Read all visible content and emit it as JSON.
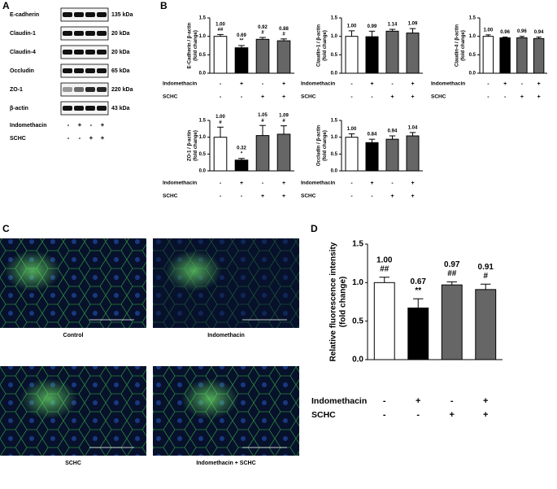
{
  "panels": {
    "a": "A",
    "b": "B",
    "c": "C",
    "d": "D"
  },
  "western_blot": {
    "bands": [
      {
        "label": "E-cadherin",
        "size": "135 kDa"
      },
      {
        "label": "Claudin-1",
        "size": "20 kDa"
      },
      {
        "label": "Claudin-4",
        "size": "20 kDa"
      },
      {
        "label": "Occludin",
        "size": "65 kDa"
      },
      {
        "label": "ZO-1",
        "size": "220 kDa"
      },
      {
        "label": "β-actin",
        "size": "43 kDa"
      }
    ],
    "treatments": [
      {
        "name": "Indomethacin",
        "signs": [
          "-",
          "+",
          "-",
          "+"
        ]
      },
      {
        "name": "SCHC",
        "signs": [
          "-",
          "-",
          "+",
          "+"
        ]
      }
    ]
  },
  "microscopy": {
    "captions": [
      "Control",
      "Indomethacin",
      "SCHC",
      "Indomethacin + SCHC"
    ]
  },
  "chart_data": [
    {
      "type": "bar",
      "y_label": [
        "E-Cadherin / β-actin",
        "(fold change)"
      ],
      "values": [
        1.0,
        0.69,
        0.92,
        0.88
      ],
      "value_labels": [
        "1.00",
        "0.69",
        "0.92",
        "0.88"
      ],
      "errors": [
        0.05,
        0.06,
        0.05,
        0.05
      ],
      "significance": [
        "##",
        "**",
        "#",
        "#"
      ],
      "colors": [
        "#ffffff",
        "#000000",
        "#666666",
        "#666666"
      ],
      "ylim": [
        0,
        1.5
      ],
      "yticks": [
        {
          "value": 0,
          "label": "0.0"
        },
        {
          "value": 0.5,
          "label": "0.5"
        },
        {
          "value": 1,
          "label": "1.0"
        },
        {
          "value": 1.5,
          "label": "1.5"
        }
      ],
      "treatments": [
        {
          "name": "Indomethacin",
          "signs": [
            "-",
            "+",
            "-",
            "+"
          ]
        },
        {
          "name": "SCHC",
          "signs": [
            "-",
            "-",
            "+",
            "+"
          ]
        }
      ]
    },
    {
      "type": "bar",
      "y_label": [
        "Claudin-1 / β-actin",
        "(fold change)"
      ],
      "values": [
        1.0,
        0.99,
        1.14,
        1.09
      ],
      "value_labels": [
        "1.00",
        "0.99",
        "1.14",
        "1.09"
      ],
      "errors": [
        0.15,
        0.15,
        0.05,
        0.12
      ],
      "colors": [
        "#ffffff",
        "#000000",
        "#666666",
        "#666666"
      ],
      "ylim": [
        0,
        1.5
      ],
      "yticks": [
        {
          "value": 0,
          "label": "0.0"
        },
        {
          "value": 0.5,
          "label": "0.5"
        },
        {
          "value": 1,
          "label": "1.0"
        },
        {
          "value": 1.5,
          "label": "1.5"
        }
      ],
      "treatments": [
        {
          "name": "Indomethacin",
          "signs": [
            "-",
            "+",
            "-",
            "+"
          ]
        },
        {
          "name": "SCHC",
          "signs": [
            "-",
            "-",
            "+",
            "+"
          ]
        }
      ]
    },
    {
      "type": "bar",
      "y_label": [
        "Claudin-4 / β-actin",
        "(fold change)"
      ],
      "values": [
        1.0,
        0.96,
        0.96,
        0.94
      ],
      "value_labels": [
        "1.00",
        "0.96",
        "0.96",
        "0.94"
      ],
      "errors": [
        0.04,
        0.02,
        0.04,
        0.04
      ],
      "colors": [
        "#ffffff",
        "#000000",
        "#666666",
        "#666666"
      ],
      "ylim": [
        0,
        1.5
      ],
      "yticks": [
        {
          "value": 0,
          "label": "0.0"
        },
        {
          "value": 0.5,
          "label": "0.5"
        },
        {
          "value": 1,
          "label": "1.0"
        },
        {
          "value": 1.5,
          "label": "1.5"
        }
      ],
      "treatments": [
        {
          "name": "Indomethacin",
          "signs": [
            "-",
            "+",
            "-",
            "+"
          ]
        },
        {
          "name": "SCHC",
          "signs": [
            "-",
            "-",
            "+",
            "+"
          ]
        }
      ]
    },
    {
      "type": "bar",
      "y_label": [
        "ZO-1 / β-actin",
        "(fold change)"
      ],
      "values": [
        1.0,
        0.32,
        1.05,
        1.09
      ],
      "value_labels": [
        "1.00",
        "0.32",
        "1.05",
        "1.09"
      ],
      "errors": [
        0.3,
        0.05,
        0.3,
        0.25
      ],
      "significance": [
        "#",
        "*",
        "#",
        "#"
      ],
      "colors": [
        "#ffffff",
        "#000000",
        "#666666",
        "#666666"
      ],
      "ylim": [
        0,
        1.5
      ],
      "yticks": [
        {
          "value": 0,
          "label": "0.0"
        },
        {
          "value": 0.5,
          "label": "0.5"
        },
        {
          "value": 1,
          "label": "1.0"
        },
        {
          "value": 1.5,
          "label": "1.5"
        }
      ],
      "treatments": [
        {
          "name": "Indomethacin",
          "signs": [
            "-",
            "+",
            "-",
            "+"
          ]
        },
        {
          "name": "SCHC",
          "signs": [
            "-",
            "-",
            "+",
            "+"
          ]
        }
      ]
    },
    {
      "type": "bar",
      "y_label": [
        "Occludin / β-actin",
        "(fold change)"
      ],
      "values": [
        1.0,
        0.84,
        0.94,
        1.04
      ],
      "value_labels": [
        "1.00",
        "0.84",
        "0.94",
        "1.04"
      ],
      "errors": [
        0.1,
        0.1,
        0.1,
        0.1
      ],
      "colors": [
        "#ffffff",
        "#000000",
        "#666666",
        "#666666"
      ],
      "ylim": [
        0,
        1.5
      ],
      "yticks": [
        {
          "value": 0,
          "label": "0.0"
        },
        {
          "value": 0.5,
          "label": "0.5"
        },
        {
          "value": 1,
          "label": "1.0"
        },
        {
          "value": 1.5,
          "label": "1.5"
        }
      ],
      "treatments": [
        {
          "name": "Indomethacin",
          "signs": [
            "-",
            "+",
            "-",
            "+"
          ]
        },
        {
          "name": "SCHC",
          "signs": [
            "-",
            "-",
            "+",
            "+"
          ]
        }
      ]
    },
    {
      "type": "bar",
      "y_label": [
        "Relative fluorescence intensity",
        "(fold change)"
      ],
      "values": [
        1.0,
        0.67,
        0.97,
        0.91
      ],
      "value_labels": [
        "1.00",
        "0.67",
        "0.97",
        "0.91"
      ],
      "errors": [
        0.07,
        0.12,
        0.04,
        0.07
      ],
      "significance": [
        "##",
        "**",
        "##",
        "#"
      ],
      "colors": [
        "#ffffff",
        "#000000",
        "#666666",
        "#666666"
      ],
      "ylim": [
        0,
        1.5
      ],
      "yticks": [
        {
          "value": 0,
          "label": "0.0"
        },
        {
          "value": 0.5,
          "label": "0.5"
        },
        {
          "value": 1,
          "label": "1.0"
        },
        {
          "value": 1.5,
          "label": "1.5"
        }
      ],
      "treatments": [
        {
          "name": "Indomethacin",
          "signs": [
            "-",
            "+",
            "-",
            "+"
          ]
        },
        {
          "name": "SCHC",
          "signs": [
            "-",
            "-",
            "+",
            "+"
          ]
        }
      ]
    }
  ]
}
